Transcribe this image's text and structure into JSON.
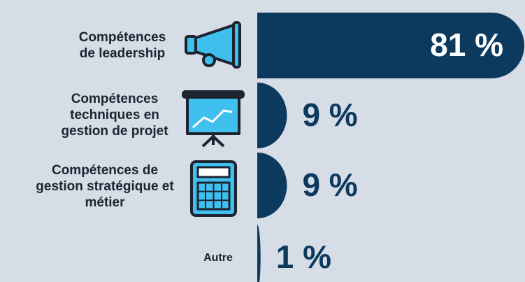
{
  "chart_data": {
    "type": "bar",
    "orientation": "horizontal",
    "categories": [
      "Compétences de leadership",
      "Compétences techniques en gestion de projet",
      "Compétences de gestion stratégique et métier",
      "Autre"
    ],
    "values": [
      81,
      9,
      9,
      1
    ],
    "value_labels": [
      "81 %",
      "9 %",
      "9 %",
      "1 %"
    ],
    "color": "#0c3a5e"
  }
}
